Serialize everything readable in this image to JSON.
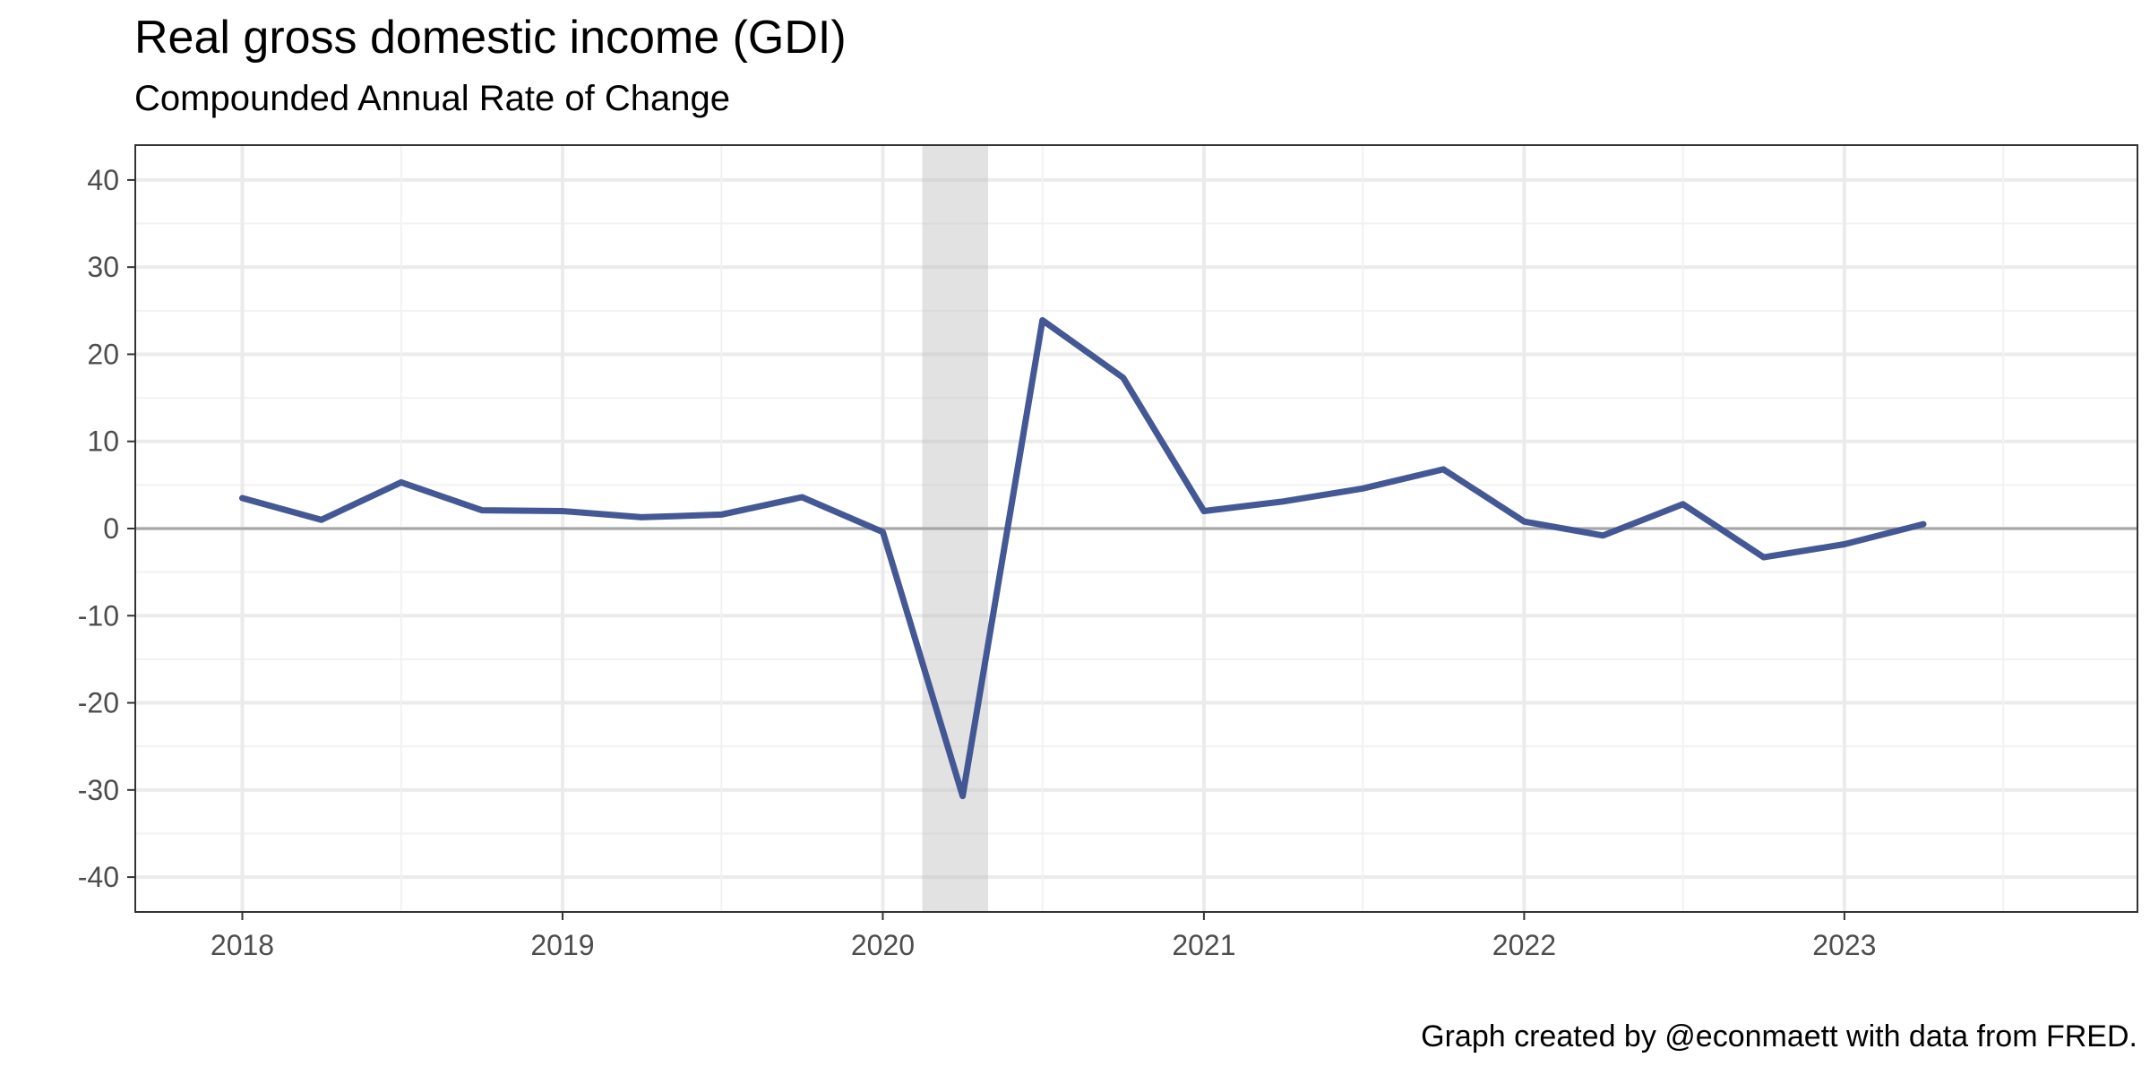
{
  "chart_data": {
    "type": "line",
    "title": "Real gross domestic income (GDI)",
    "subtitle": "Compounded Annual Rate of Change",
    "caption": "Graph created by @econmaett with data from FRED.",
    "xlabel": "",
    "ylabel": "",
    "ylim": [
      -44,
      44
    ],
    "xlim": [
      "2017-09-01",
      "2023-12-01"
    ],
    "y_ticks": [
      40,
      30,
      20,
      10,
      0,
      -10,
      -20,
      -30,
      -40
    ],
    "x_ticks": [
      "2018",
      "2019",
      "2020",
      "2021",
      "2022",
      "2023"
    ],
    "grid": true,
    "zero_line": true,
    "recession_shading": {
      "start": "2020-02-15",
      "end": "2020-04-30"
    },
    "series": [
      {
        "color": "#3a4f8f",
        "x": [
          "2018-01-01",
          "2018-04-01",
          "2018-07-01",
          "2018-10-01",
          "2019-01-01",
          "2019-04-01",
          "2019-07-01",
          "2019-10-01",
          "2020-01-01",
          "2020-04-01",
          "2020-07-01",
          "2020-10-01",
          "2021-01-01",
          "2021-04-01",
          "2021-07-01",
          "2021-10-01",
          "2022-01-01",
          "2022-04-01",
          "2022-07-01",
          "2022-10-01",
          "2023-01-01",
          "2023-04-01"
        ],
        "values": [
          3.5,
          1.0,
          5.3,
          2.1,
          2.0,
          1.3,
          1.6,
          3.6,
          -0.4,
          -30.7,
          23.9,
          17.3,
          2.0,
          3.1,
          4.6,
          6.8,
          0.8,
          -0.8,
          2.8,
          -3.3,
          -1.8,
          0.5
        ]
      }
    ]
  }
}
